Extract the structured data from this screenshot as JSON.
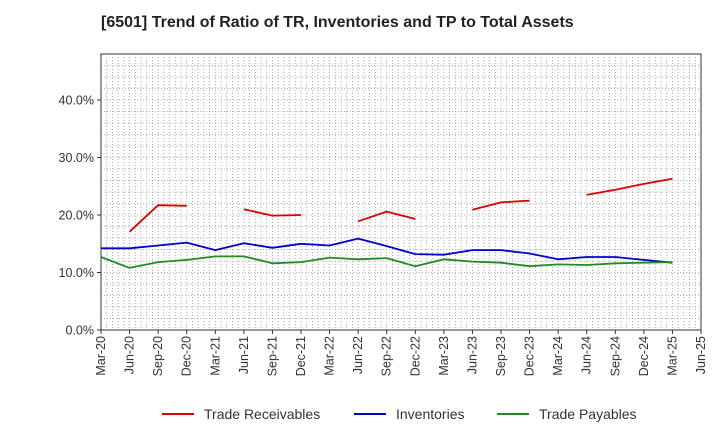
{
  "chart_data": {
    "type": "line",
    "title": "[6501]  Trend of Ratio of TR, Inventories and TP to Total Assets",
    "xlabel": "",
    "ylabel": "",
    "x": [
      "Mar-20",
      "Jun-20",
      "Sep-20",
      "Dec-20",
      "Mar-21",
      "Jun-21",
      "Sep-21",
      "Dec-21",
      "Mar-22",
      "Jun-22",
      "Sep-22",
      "Dec-22",
      "Mar-23",
      "Jun-23",
      "Sep-23",
      "Dec-23",
      "Mar-24",
      "Jun-24",
      "Sep-24",
      "Dec-24",
      "Mar-25",
      "Jun-25"
    ],
    "yticks": [
      "0.0%",
      "10.0%",
      "20.0%",
      "30.0%",
      "40.0%"
    ],
    "ylim": [
      0,
      48
    ],
    "grid": true,
    "legend_position": "bottom",
    "series": [
      {
        "name": "Trade Receivables",
        "color": "#dd0000",
        "values": [
          null,
          17.1,
          21.7,
          21.6,
          null,
          21.0,
          19.9,
          20.0,
          null,
          18.9,
          20.6,
          19.3,
          null,
          20.9,
          22.2,
          22.5,
          null,
          23.5,
          24.4,
          25.4,
          26.3,
          null
        ]
      },
      {
        "name": "Inventories",
        "color": "#0000cc",
        "values": [
          14.2,
          14.2,
          14.7,
          15.2,
          13.9,
          15.1,
          14.3,
          15.0,
          14.7,
          15.9,
          14.6,
          13.2,
          13.1,
          13.9,
          13.9,
          13.3,
          12.3,
          12.7,
          12.7,
          12.2,
          11.7,
          null
        ]
      },
      {
        "name": "Trade Payables",
        "color": "#228b22",
        "values": [
          12.7,
          10.8,
          11.8,
          12.2,
          12.8,
          12.8,
          11.6,
          11.8,
          12.6,
          12.3,
          12.5,
          11.1,
          12.3,
          11.9,
          11.7,
          11.1,
          11.4,
          11.3,
          11.6,
          11.7,
          11.8,
          null
        ]
      }
    ]
  }
}
